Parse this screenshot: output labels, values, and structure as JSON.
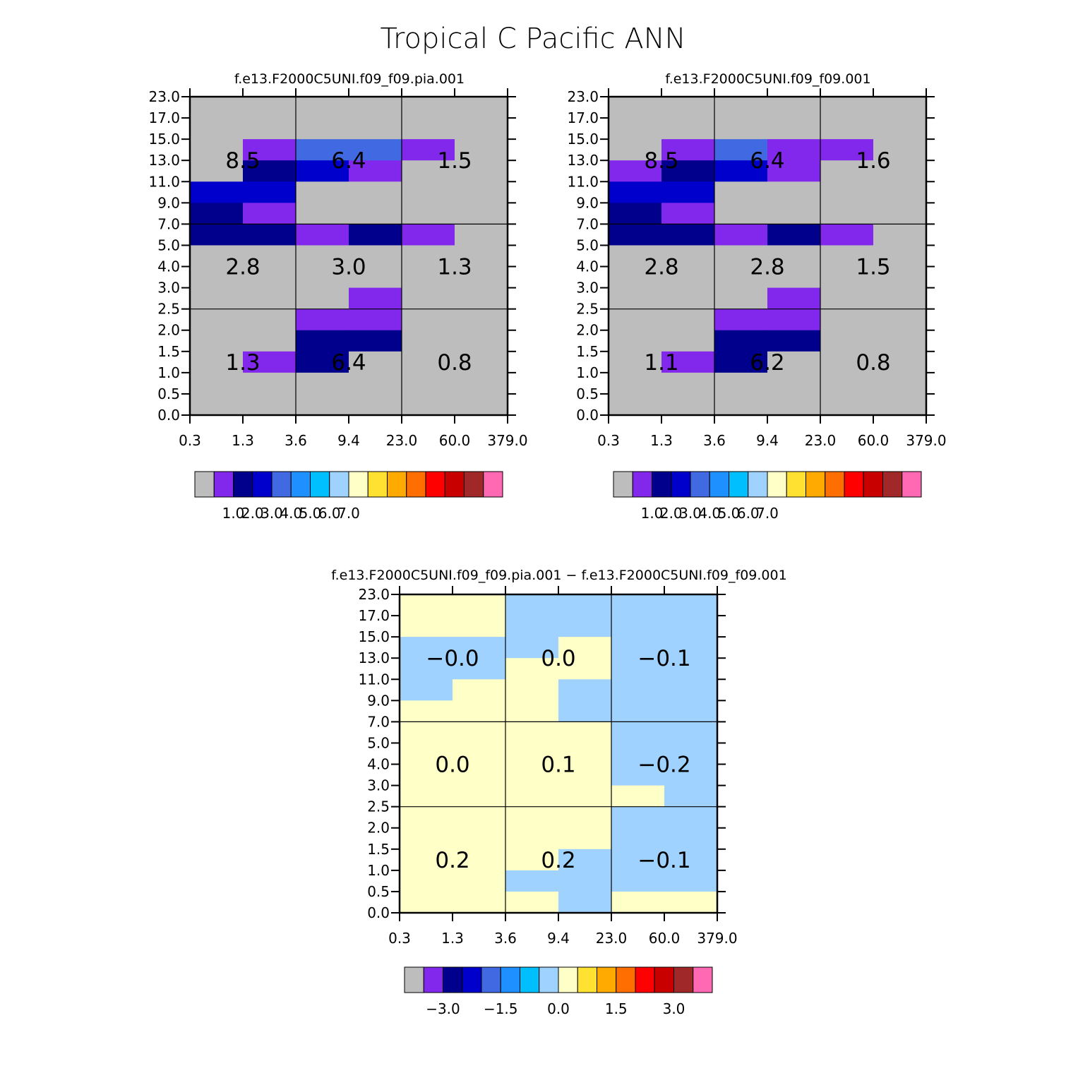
{
  "title": "Tropical C Pacific ANN",
  "x_ticks": [
    "0.3",
    "1.3",
    "3.6",
    "9.4",
    "23.0",
    "60.0",
    "379.0"
  ],
  "y_ticks": [
    "0.0",
    "0.5",
    "1.0",
    "1.5",
    "2.0",
    "2.5",
    "3.0",
    "4.0",
    "5.0",
    "7.0",
    "9.0",
    "11.0",
    "13.0",
    "15.0",
    "17.0",
    "23.0"
  ],
  "palette": [
    "#bdbdbd",
    "#8228ec",
    "#00008c",
    "#0000cd",
    "#4169e1",
    "#1e90ff",
    "#00bfff",
    "#a0d2ff",
    "#ffffc8",
    "#ffe132",
    "#ffaa00",
    "#ff6e00",
    "#ff0000",
    "#c80000",
    "#a02828",
    "#ff69b4"
  ],
  "chart_data": [
    {
      "type": "heatmap",
      "title": "f.e13.F2000C5UNI.f09_f09.pia.001",
      "cell_grid": [
        [
          0,
          0,
          0,
          0,
          0,
          0
        ],
        [
          0,
          0,
          0,
          0,
          0,
          0
        ],
        [
          0,
          1,
          4,
          4,
          1,
          0
        ],
        [
          0,
          2,
          3,
          1,
          0,
          0
        ],
        [
          3,
          3,
          0,
          0,
          0,
          0
        ],
        [
          2,
          1,
          0,
          0,
          0,
          0
        ],
        [
          2,
          2,
          1,
          2,
          1,
          0
        ],
        [
          0,
          0,
          0,
          0,
          0,
          0
        ],
        [
          0,
          0,
          0,
          0,
          0,
          0
        ],
        [
          0,
          0,
          0,
          1,
          0,
          0
        ],
        [
          0,
          0,
          1,
          1,
          0,
          0
        ],
        [
          0,
          0,
          2,
          2,
          0,
          0
        ],
        [
          0,
          1,
          2,
          0,
          0,
          0
        ],
        [
          0,
          0,
          0,
          0,
          0,
          0
        ],
        [
          0,
          0,
          0,
          0,
          0,
          0
        ]
      ],
      "annotations": [
        [
          "8.5",
          "6.4",
          "1.5"
        ],
        [
          "2.8",
          "3.0",
          "1.3"
        ],
        [
          "1.3",
          "6.4",
          "0.8"
        ]
      ],
      "colorbar": {
        "labels": [
          "1.0",
          "2.0",
          "3.0",
          "4.0",
          "5.0",
          "6.0",
          "7.0"
        ]
      }
    },
    {
      "type": "heatmap",
      "title": "f.e13.F2000C5UNI.f09_f09.001",
      "cell_grid": [
        [
          0,
          0,
          0,
          0,
          0,
          0
        ],
        [
          0,
          0,
          0,
          0,
          0,
          0
        ],
        [
          0,
          1,
          4,
          1,
          1,
          0
        ],
        [
          1,
          2,
          3,
          1,
          0,
          0
        ],
        [
          3,
          3,
          0,
          0,
          0,
          0
        ],
        [
          2,
          1,
          0,
          0,
          0,
          0
        ],
        [
          2,
          2,
          1,
          2,
          1,
          0
        ],
        [
          0,
          0,
          0,
          0,
          0,
          0
        ],
        [
          0,
          0,
          0,
          0,
          0,
          0
        ],
        [
          0,
          0,
          0,
          1,
          0,
          0
        ],
        [
          0,
          0,
          1,
          1,
          0,
          0
        ],
        [
          0,
          0,
          2,
          2,
          0,
          0
        ],
        [
          0,
          1,
          2,
          0,
          0,
          0
        ],
        [
          0,
          0,
          0,
          0,
          0,
          0
        ],
        [
          0,
          0,
          0,
          0,
          0,
          0
        ]
      ],
      "annotations": [
        [
          "8.5",
          "6.4",
          "1.6"
        ],
        [
          "2.8",
          "2.8",
          "1.5"
        ],
        [
          "1.1",
          "6.2",
          "0.8"
        ]
      ],
      "colorbar": {
        "labels": [
          "1.0",
          "2.0",
          "3.0",
          "4.0",
          "5.0",
          "6.0",
          "7.0"
        ]
      }
    },
    {
      "type": "heatmap",
      "title": "f.e13.F2000C5UNI.f09_f09.pia.001 − f.e13.F2000C5UNI.f09_f09.001",
      "cell_grid": [
        [
          8,
          8,
          7,
          7,
          7,
          7
        ],
        [
          8,
          8,
          7,
          7,
          7,
          7
        ],
        [
          7,
          7,
          7,
          8,
          7,
          7
        ],
        [
          7,
          7,
          8,
          8,
          7,
          7
        ],
        [
          7,
          8,
          8,
          7,
          7,
          7
        ],
        [
          8,
          8,
          8,
          7,
          7,
          7
        ],
        [
          8,
          8,
          8,
          8,
          7,
          7
        ],
        [
          8,
          8,
          8,
          8,
          7,
          7
        ],
        [
          8,
          8,
          8,
          8,
          7,
          7
        ],
        [
          8,
          8,
          8,
          8,
          8,
          7
        ],
        [
          8,
          8,
          8,
          8,
          7,
          7
        ],
        [
          8,
          8,
          8,
          8,
          7,
          7
        ],
        [
          8,
          8,
          8,
          7,
          7,
          7
        ],
        [
          8,
          8,
          7,
          7,
          7,
          7
        ],
        [
          8,
          8,
          8,
          7,
          8,
          8
        ]
      ],
      "annotations": [
        [
          "−0.0",
          "0.0",
          "−0.1"
        ],
        [
          "0.0",
          "0.1",
          "−0.2"
        ],
        [
          "0.2",
          "0.2",
          "−0.1"
        ]
      ],
      "colorbar": {
        "labels": [
          "−3.0",
          "−1.5",
          "0.0",
          "1.5",
          "3.0"
        ],
        "label_every": 3,
        "label_start": 1
      }
    }
  ]
}
